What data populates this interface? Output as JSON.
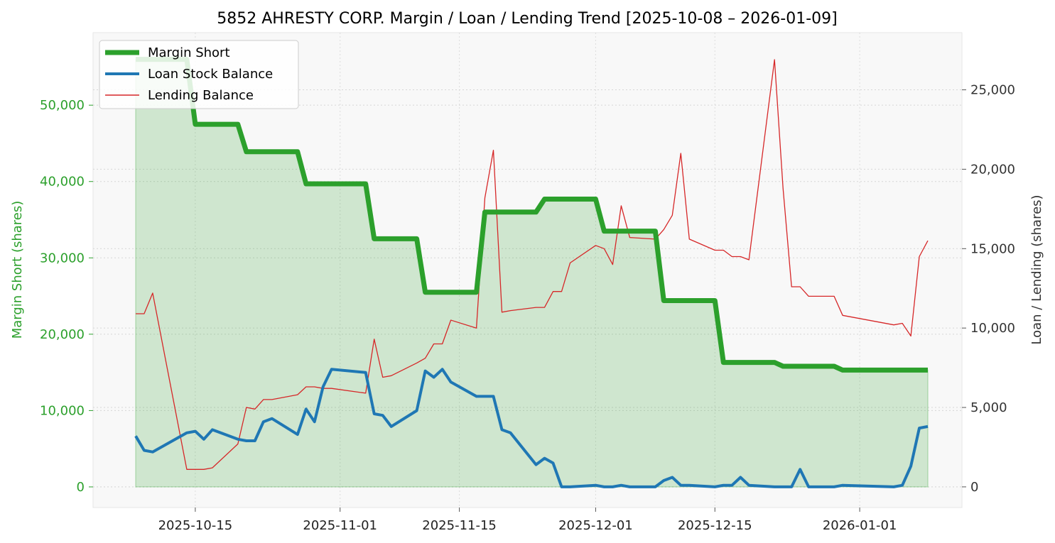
{
  "chart_data": {
    "type": "line",
    "title": "5852 AHRESTY CORP. Margin / Loan / Lending Trend [2025-10-08 – 2026-01-09]",
    "ylabel_left": "Margin Short (shares)",
    "ylabel_right": "Loan / Lending (shares)",
    "xlabel": "",
    "x_ticks": [
      "2025-10-15",
      "2025-11-01",
      "2025-11-15",
      "2025-12-01",
      "2025-12-15",
      "2026-01-01"
    ],
    "y_left_ticks": [
      "0",
      "10,000",
      "20,000",
      "30,000",
      "40,000",
      "50,000"
    ],
    "y_right_ticks": [
      "0",
      "5,000",
      "10,000",
      "15,000",
      "20,000",
      "25,000"
    ],
    "y_left_lim": [
      -2700,
      59500
    ],
    "y_right_lim": [
      -1300,
      28600
    ],
    "x_lim": [
      "2025-10-03",
      "2026-01-13"
    ],
    "grid": true,
    "legend_position": "top-left",
    "colors": {
      "margin": "#2ca02c",
      "loan": "#1f77b4",
      "lending": "#d62728"
    },
    "series": [
      {
        "name": "Margin Short",
        "axis": "left",
        "points": [
          [
            "2025-10-08",
            56000
          ],
          [
            "2025-10-09",
            56000
          ],
          [
            "2025-10-10",
            56000
          ],
          [
            "2025-10-14",
            56000
          ],
          [
            "2025-10-15",
            47500
          ],
          [
            "2025-10-16",
            47500
          ],
          [
            "2025-10-17",
            47500
          ],
          [
            "2025-10-20",
            47500
          ],
          [
            "2025-10-21",
            43900
          ],
          [
            "2025-10-22",
            43900
          ],
          [
            "2025-10-23",
            43900
          ],
          [
            "2025-10-24",
            43900
          ],
          [
            "2025-10-27",
            43900
          ],
          [
            "2025-10-28",
            39700
          ],
          [
            "2025-10-29",
            39700
          ],
          [
            "2025-10-30",
            39700
          ],
          [
            "2025-10-31",
            39700
          ],
          [
            "2025-11-04",
            39700
          ],
          [
            "2025-11-05",
            32500
          ],
          [
            "2025-11-06",
            32500
          ],
          [
            "2025-11-07",
            32500
          ],
          [
            "2025-11-10",
            32500
          ],
          [
            "2025-11-11",
            25500
          ],
          [
            "2025-11-12",
            25500
          ],
          [
            "2025-11-13",
            25500
          ],
          [
            "2025-11-14",
            25500
          ],
          [
            "2025-11-17",
            25500
          ],
          [
            "2025-11-18",
            36000
          ],
          [
            "2025-11-19",
            36000
          ],
          [
            "2025-11-20",
            36000
          ],
          [
            "2025-11-21",
            36000
          ],
          [
            "2025-11-24",
            36000
          ],
          [
            "2025-11-25",
            37700
          ],
          [
            "2025-11-26",
            37700
          ],
          [
            "2025-11-27",
            37700
          ],
          [
            "2025-11-28",
            37700
          ],
          [
            "2025-12-01",
            37700
          ],
          [
            "2025-12-02",
            33500
          ],
          [
            "2025-12-03",
            33500
          ],
          [
            "2025-12-04",
            33500
          ],
          [
            "2025-12-05",
            33500
          ],
          [
            "2025-12-08",
            33500
          ],
          [
            "2025-12-09",
            24400
          ],
          [
            "2025-12-10",
            24400
          ],
          [
            "2025-12-11",
            24400
          ],
          [
            "2025-12-12",
            24400
          ],
          [
            "2025-12-15",
            24400
          ],
          [
            "2025-12-16",
            16300
          ],
          [
            "2025-12-17",
            16300
          ],
          [
            "2025-12-18",
            16300
          ],
          [
            "2025-12-19",
            16300
          ],
          [
            "2025-12-22",
            16300
          ],
          [
            "2025-12-23",
            15800
          ],
          [
            "2025-12-24",
            15800
          ],
          [
            "2025-12-25",
            15800
          ],
          [
            "2025-12-26",
            15800
          ],
          [
            "2025-12-29",
            15800
          ],
          [
            "2025-12-30",
            15300
          ],
          [
            "2026-01-05",
            15300
          ],
          [
            "2026-01-06",
            15300
          ],
          [
            "2026-01-07",
            15300
          ],
          [
            "2026-01-08",
            15300
          ],
          [
            "2026-01-09",
            15300
          ]
        ]
      },
      {
        "name": "Loan Stock Balance",
        "axis": "right",
        "points": [
          [
            "2025-10-08",
            3200
          ],
          [
            "2025-10-09",
            2300
          ],
          [
            "2025-10-10",
            2200
          ],
          [
            "2025-10-14",
            3400
          ],
          [
            "2025-10-15",
            3500
          ],
          [
            "2025-10-16",
            3000
          ],
          [
            "2025-10-17",
            3600
          ],
          [
            "2025-10-20",
            3000
          ],
          [
            "2025-10-21",
            2900
          ],
          [
            "2025-10-22",
            2900
          ],
          [
            "2025-10-23",
            4100
          ],
          [
            "2025-10-24",
            4300
          ],
          [
            "2025-10-27",
            3300
          ],
          [
            "2025-10-28",
            4900
          ],
          [
            "2025-10-29",
            4100
          ],
          [
            "2025-10-30",
            6300
          ],
          [
            "2025-10-31",
            7400
          ],
          [
            "2025-11-04",
            7200
          ],
          [
            "2025-11-05",
            4600
          ],
          [
            "2025-11-06",
            4500
          ],
          [
            "2025-11-07",
            3800
          ],
          [
            "2025-11-10",
            4800
          ],
          [
            "2025-11-11",
            7300
          ],
          [
            "2025-11-12",
            6900
          ],
          [
            "2025-11-13",
            7400
          ],
          [
            "2025-11-14",
            6600
          ],
          [
            "2025-11-17",
            5700
          ],
          [
            "2025-11-18",
            5700
          ],
          [
            "2025-11-19",
            5700
          ],
          [
            "2025-11-20",
            3600
          ],
          [
            "2025-11-21",
            3400
          ],
          [
            "2025-11-24",
            1400
          ],
          [
            "2025-11-25",
            1800
          ],
          [
            "2025-11-26",
            1500
          ],
          [
            "2025-11-27",
            0
          ],
          [
            "2025-11-28",
            0
          ],
          [
            "2025-12-01",
            100
          ],
          [
            "2025-12-02",
            0
          ],
          [
            "2025-12-03",
            0
          ],
          [
            "2025-12-04",
            100
          ],
          [
            "2025-12-05",
            0
          ],
          [
            "2025-12-08",
            0
          ],
          [
            "2025-12-09",
            400
          ],
          [
            "2025-12-10",
            600
          ],
          [
            "2025-12-11",
            100
          ],
          [
            "2025-12-12",
            100
          ],
          [
            "2025-12-15",
            0
          ],
          [
            "2025-12-16",
            100
          ],
          [
            "2025-12-17",
            100
          ],
          [
            "2025-12-18",
            600
          ],
          [
            "2025-12-19",
            100
          ],
          [
            "2025-12-22",
            0
          ],
          [
            "2025-12-23",
            0
          ],
          [
            "2025-12-24",
            0
          ],
          [
            "2025-12-25",
            1100
          ],
          [
            "2025-12-26",
            0
          ],
          [
            "2025-12-29",
            0
          ],
          [
            "2025-12-30",
            100
          ],
          [
            "2026-01-05",
            0
          ],
          [
            "2026-01-06",
            100
          ],
          [
            "2026-01-07",
            1300
          ],
          [
            "2026-01-08",
            3700
          ],
          [
            "2026-01-09",
            3800
          ]
        ]
      },
      {
        "name": "Lending Balance",
        "axis": "right",
        "points": [
          [
            "2025-10-08",
            10900
          ],
          [
            "2025-10-09",
            10900
          ],
          [
            "2025-10-10",
            12200
          ],
          [
            "2025-10-14",
            1100
          ],
          [
            "2025-10-15",
            1100
          ],
          [
            "2025-10-16",
            1100
          ],
          [
            "2025-10-17",
            1200
          ],
          [
            "2025-10-20",
            2700
          ],
          [
            "2025-10-21",
            5000
          ],
          [
            "2025-10-22",
            4900
          ],
          [
            "2025-10-23",
            5500
          ],
          [
            "2025-10-24",
            5500
          ],
          [
            "2025-10-27",
            5800
          ],
          [
            "2025-10-28",
            6300
          ],
          [
            "2025-10-29",
            6300
          ],
          [
            "2025-10-30",
            6200
          ],
          [
            "2025-10-31",
            6200
          ],
          [
            "2025-11-04",
            5900
          ],
          [
            "2025-11-05",
            9300
          ],
          [
            "2025-11-06",
            6900
          ],
          [
            "2025-11-07",
            7000
          ],
          [
            "2025-11-10",
            7800
          ],
          [
            "2025-11-11",
            8100
          ],
          [
            "2025-11-12",
            9000
          ],
          [
            "2025-11-13",
            9000
          ],
          [
            "2025-11-14",
            10500
          ],
          [
            "2025-11-17",
            10000
          ],
          [
            "2025-11-18",
            18200
          ],
          [
            "2025-11-19",
            21200
          ],
          [
            "2025-11-20",
            11000
          ],
          [
            "2025-11-21",
            11100
          ],
          [
            "2025-11-24",
            11300
          ],
          [
            "2025-11-25",
            11300
          ],
          [
            "2025-11-26",
            12300
          ],
          [
            "2025-11-27",
            12300
          ],
          [
            "2025-11-28",
            14100
          ],
          [
            "2025-12-01",
            15200
          ],
          [
            "2025-12-02",
            15000
          ],
          [
            "2025-12-03",
            14000
          ],
          [
            "2025-12-04",
            17700
          ],
          [
            "2025-12-05",
            15700
          ],
          [
            "2025-12-08",
            15600
          ],
          [
            "2025-12-09",
            16200
          ],
          [
            "2025-12-10",
            17100
          ],
          [
            "2025-12-11",
            21000
          ],
          [
            "2025-12-12",
            15600
          ],
          [
            "2025-12-15",
            14900
          ],
          [
            "2025-12-16",
            14900
          ],
          [
            "2025-12-17",
            14500
          ],
          [
            "2025-12-18",
            14500
          ],
          [
            "2025-12-19",
            14300
          ],
          [
            "2025-12-22",
            26900
          ],
          [
            "2025-12-23",
            18800
          ],
          [
            "2025-12-24",
            12600
          ],
          [
            "2025-12-25",
            12600
          ],
          [
            "2025-12-26",
            12000
          ],
          [
            "2025-12-29",
            12000
          ],
          [
            "2025-12-30",
            10800
          ],
          [
            "2026-01-05",
            10200
          ],
          [
            "2026-01-06",
            10300
          ],
          [
            "2026-01-07",
            9500
          ],
          [
            "2026-01-08",
            14500
          ],
          [
            "2026-01-09",
            15500
          ]
        ]
      }
    ]
  }
}
